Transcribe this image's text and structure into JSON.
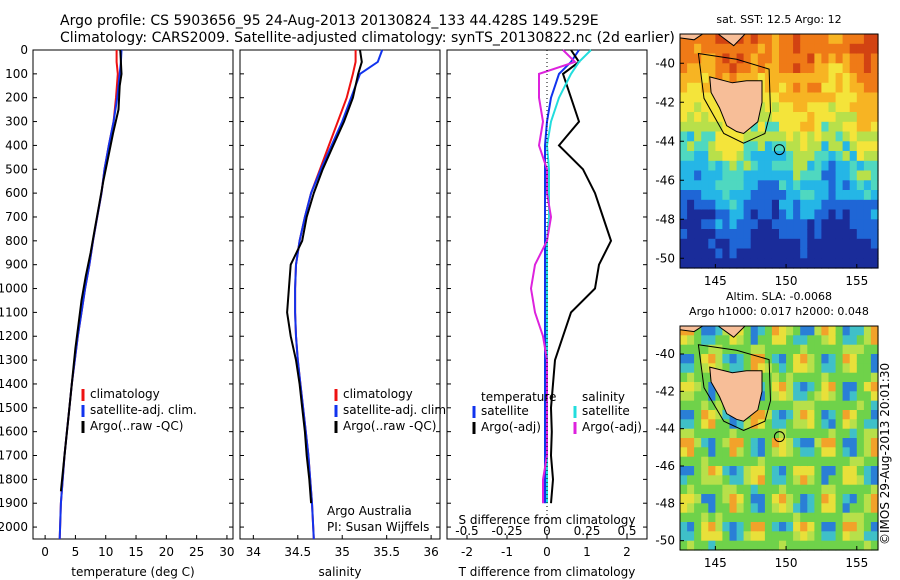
{
  "header": {
    "line1": "Argo profile: CS 5903656_95 24-Aug-2013 20130824_133 44.428S 149.529E",
    "line2": "Climatology: CARS2009. Satellite-adjusted climatology: synTS_20130822.nc (2d earlier)"
  },
  "stamp": "©IMOS 29-Aug-2013 20:01:30",
  "colors": {
    "climatology": "#ee1111",
    "satellite": "#1133ee",
    "argo": "#000000",
    "sat_salinity": "#22dddd",
    "argo_salinity": "#dd22dd",
    "land": "#f7be98"
  },
  "chart_data": [
    {
      "type": "line",
      "title": "",
      "xlabel": "temperature (deg C)",
      "xlim": [
        -2,
        31
      ],
      "xticks": [
        0,
        5,
        10,
        15,
        20,
        25,
        30
      ],
      "ylim": [
        2050,
        0
      ],
      "yticks": [
        0,
        100,
        200,
        300,
        400,
        500,
        600,
        700,
        800,
        900,
        1000,
        1100,
        1200,
        1300,
        1400,
        1500,
        1600,
        1700,
        1800,
        1900,
        2000
      ],
      "legend": [
        "climatology",
        "satellite-adj. clim.",
        "Argo(..raw -QC)"
      ],
      "legend_position": "bottom-right",
      "series": [
        {
          "name": "climatology",
          "color": "#ee1111",
          "x": [
            11.8,
            11.8,
            12.0,
            11.7,
            11.3,
            10.5,
            9.8,
            9.3,
            8.6,
            7.9,
            7.3,
            6.6,
            6.0,
            5.4,
            4.9,
            4.4,
            4.0,
            3.6,
            3.2,
            2.9,
            2.6,
            2.4
          ],
          "y": [
            0,
            50,
            100,
            200,
            300,
            400,
            500,
            600,
            700,
            800,
            900,
            1000,
            1100,
            1200,
            1300,
            1400,
            1500,
            1600,
            1700,
            1800,
            1900,
            2050
          ]
        },
        {
          "name": "satellite-adj. clim.",
          "color": "#1133ee",
          "x": [
            12.6,
            12.5,
            12.3,
            11.9,
            11.3,
            10.5,
            9.8,
            9.3,
            8.6,
            7.9,
            7.3,
            6.6,
            6.0,
            5.4,
            4.9,
            4.4,
            4.0,
            3.6,
            3.2,
            2.9,
            2.6,
            2.4
          ],
          "y": [
            0,
            50,
            100,
            200,
            300,
            400,
            500,
            600,
            700,
            800,
            900,
            1000,
            1100,
            1200,
            1300,
            1400,
            1500,
            1600,
            1700,
            1800,
            1900,
            2050
          ]
        },
        {
          "name": "Argo(..raw -QC)",
          "color": "#000000",
          "x": [
            12.4,
            12.5,
            12.6,
            12.3,
            12.1,
            11.2,
            10.4,
            9.6,
            8.9,
            8.2,
            7.5,
            6.7,
            6.0,
            5.5,
            5.0,
            4.6,
            4.2,
            3.8,
            3.4,
            3.0,
            2.6
          ],
          "y": [
            0,
            50,
            100,
            150,
            250,
            350,
            450,
            550,
            650,
            750,
            850,
            950,
            1050,
            1150,
            1250,
            1350,
            1450,
            1550,
            1650,
            1750,
            1850
          ]
        }
      ]
    },
    {
      "type": "line",
      "xlabel": "salinity",
      "xlim": [
        33.85,
        36.1
      ],
      "xticks": [
        34,
        34.5,
        35,
        35.5,
        36
      ],
      "ylim": [
        2050,
        0
      ],
      "legend": [
        "climatology",
        "satellite-adj. clim.",
        "Argo(..raw -QC)"
      ],
      "legend_position": "bottom-right",
      "annotation": [
        "Argo Australia",
        "PI: Susan Wijffels"
      ],
      "series": [
        {
          "name": "climatology",
          "color": "#ee1111",
          "x": [
            35.15,
            35.15,
            35.12,
            35.05,
            34.95,
            34.85,
            34.75,
            34.65,
            34.58,
            34.52,
            34.48,
            34.47,
            34.47,
            34.48,
            34.5,
            34.53,
            34.56,
            34.59,
            34.62,
            34.64,
            34.66,
            34.68
          ],
          "y": [
            0,
            50,
            100,
            200,
            300,
            400,
            500,
            600,
            700,
            800,
            900,
            1000,
            1100,
            1200,
            1300,
            1400,
            1500,
            1600,
            1700,
            1800,
            1900,
            2050
          ]
        },
        {
          "name": "satellite-adj. clim.",
          "color": "#1133ee",
          "x": [
            35.45,
            35.4,
            35.2,
            35.1,
            35.0,
            34.88,
            34.76,
            34.65,
            34.58,
            34.52,
            34.48,
            34.47,
            34.47,
            34.48,
            34.5,
            34.53,
            34.56,
            34.59,
            34.62,
            34.64,
            34.66,
            34.68
          ],
          "y": [
            0,
            50,
            100,
            200,
            300,
            400,
            500,
            600,
            700,
            800,
            900,
            1000,
            1100,
            1200,
            1300,
            1400,
            1500,
            1600,
            1700,
            1800,
            1900,
            2050
          ]
        },
        {
          "name": "Argo(..raw -QC)",
          "color": "#000000",
          "x": [
            35.2,
            35.22,
            35.18,
            35.12,
            35.02,
            34.9,
            34.78,
            34.68,
            34.6,
            34.55,
            34.42,
            34.4,
            34.38,
            34.42,
            34.48,
            34.52,
            34.55,
            34.58,
            34.6,
            34.63,
            34.65
          ],
          "y": [
            0,
            50,
            100,
            200,
            300,
            400,
            500,
            600,
            700,
            800,
            900,
            1000,
            1100,
            1200,
            1300,
            1400,
            1500,
            1600,
            1700,
            1800,
            1900
          ]
        }
      ]
    },
    {
      "type": "line",
      "xlabel": "T difference from climatology",
      "xlabel_top": "S difference from climatology",
      "xlim": [
        -2.5,
        2.5
      ],
      "xticks": [
        -2,
        -1,
        0,
        1,
        2
      ],
      "xticks_top": [
        -0.5,
        -0.25,
        0,
        0.25,
        0.5
      ],
      "ylim": [
        2050,
        0
      ],
      "legend_temperature_title": "temperature",
      "legend_salinity_title": "salinity",
      "legend": [
        "satellite",
        "Argo(-adj)",
        "satellite",
        "Argo(-adj)"
      ],
      "legend_position": "bottom",
      "series": [
        {
          "name": "temperature satellite",
          "color": "#1133ee",
          "x": [
            0.8,
            0.6,
            0.3,
            0.1,
            0.0,
            -0.05,
            -0.05,
            -0.05,
            -0.05,
            -0.05,
            -0.05,
            -0.05,
            -0.05,
            -0.05,
            -0.05,
            -0.05,
            -0.05,
            -0.05,
            -0.05,
            -0.05,
            -0.05
          ],
          "y": [
            0,
            50,
            100,
            200,
            300,
            400,
            500,
            600,
            700,
            800,
            900,
            1000,
            1100,
            1200,
            1300,
            1400,
            1500,
            1600,
            1700,
            1800,
            1900
          ]
        },
        {
          "name": "temperature Argo(-adj)",
          "color": "#000000",
          "x": [
            0.6,
            0.8,
            0.4,
            0.6,
            0.8,
            0.3,
            0.9,
            1.2,
            1.4,
            1.6,
            1.3,
            1.2,
            0.6,
            0.4,
            0.2,
            0.15,
            0.1,
            0.12,
            0.1,
            0.15,
            0.1
          ],
          "y": [
            0,
            50,
            100,
            200,
            300,
            400,
            500,
            600,
            700,
            800,
            900,
            1000,
            1100,
            1200,
            1300,
            1400,
            1500,
            1600,
            1700,
            1800,
            1900
          ]
        },
        {
          "name": "salinity satellite",
          "color": "#22dddd",
          "x": [
            1.1,
            0.8,
            0.6,
            0.3,
            0.1,
            0.0,
            0.05,
            0.05,
            0.05,
            0.0,
            0.0,
            0.0,
            0.0,
            0.0,
            0.0,
            0.0,
            0.0,
            0.0,
            0.0,
            0.0,
            0.0
          ],
          "y": [
            0,
            50,
            100,
            200,
            300,
            400,
            500,
            600,
            700,
            800,
            900,
            1000,
            1100,
            1200,
            1300,
            1400,
            1500,
            1600,
            1700,
            1800,
            1900
          ]
        },
        {
          "name": "salinity Argo(-adj)",
          "color": "#dd22dd",
          "x": [
            0.4,
            0.7,
            -0.2,
            -0.2,
            -0.1,
            -0.2,
            0.0,
            0.0,
            0.1,
            0.0,
            -0.3,
            -0.4,
            -0.3,
            -0.1,
            0.0,
            0.0,
            0.0,
            0.0,
            0.0,
            -0.1,
            -0.1
          ],
          "y": [
            0,
            50,
            100,
            200,
            300,
            400,
            500,
            600,
            700,
            800,
            900,
            1000,
            1100,
            1200,
            1300,
            1400,
            1500,
            1600,
            1700,
            1800,
            1900
          ]
        }
      ]
    },
    {
      "type": "heatmap",
      "title": "sat. SST: 12.5 Argo: 12",
      "xticks": [
        145,
        150,
        155
      ],
      "yticks": [
        -40,
        -42,
        -44,
        -46,
        -48,
        -50
      ],
      "xlim": [
        142.5,
        156.5
      ],
      "ylim": [
        -50.5,
        -38.5
      ],
      "marker": {
        "lon": 149.529,
        "lat": -44.428
      }
    },
    {
      "type": "heatmap",
      "title": "Altim. SLA: -0.0068",
      "subtitle": "Argo h1000: 0.017 h2000: 0.048",
      "xticks": [
        145,
        150,
        155
      ],
      "yticks": [
        -40,
        -42,
        -44,
        -46,
        -48,
        -50
      ],
      "xlim": [
        142.5,
        156.5
      ],
      "ylim": [
        -50.5,
        -38.5
      ],
      "marker": {
        "lon": 149.529,
        "lat": -44.428
      }
    }
  ]
}
